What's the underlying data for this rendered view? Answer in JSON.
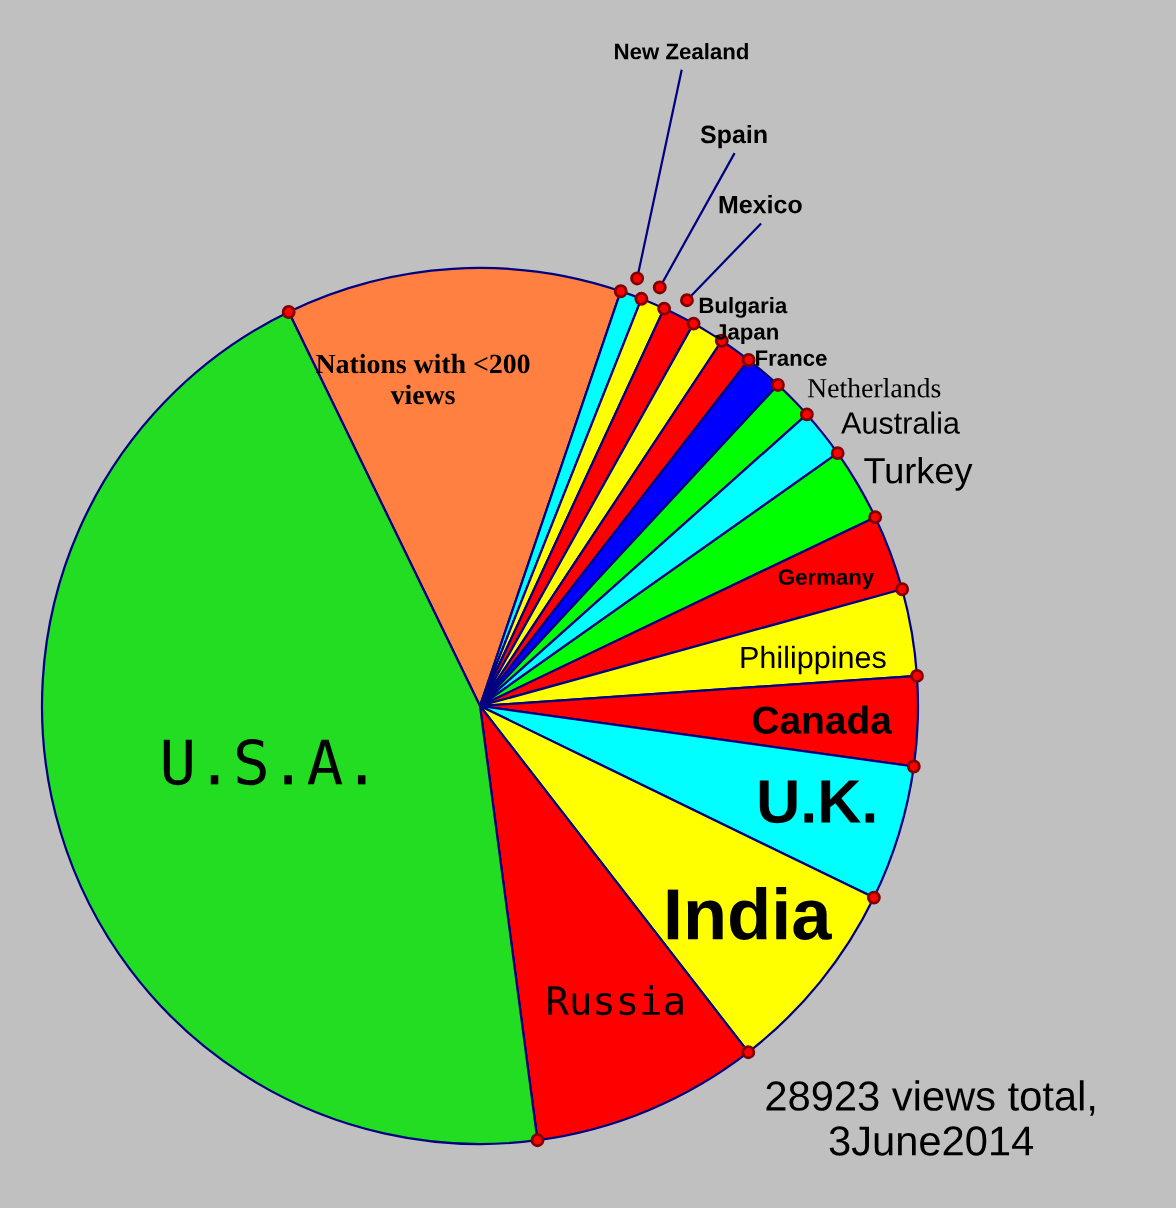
{
  "chart_data": {
    "type": "pie",
    "categories": [
      "Nations with <200 views",
      "New Zealand",
      "Spain",
      "Mexico",
      "Bulgaria",
      "Japan",
      "France",
      "Netherlands",
      "Australia",
      "Turkey",
      "Germany",
      "Philippines",
      "Canada",
      "U.K.",
      "India",
      "Russia",
      "U.S.A."
    ],
    "values": [
      12.4,
      0.8,
      0.9,
      1.2,
      1.2,
      1.2,
      1.4,
      1.5,
      1.8,
      2.7,
      2.8,
      3.2,
      3.3,
      5.0,
      7.3,
      8.4,
      44.9
    ],
    "colors": [
      "#ff8040",
      "#00ffff",
      "#ffff00",
      "#ff0000",
      "#ffff00",
      "#ff0000",
      "#0000ff",
      "#00ff00",
      "#00ffff",
      "#00ff00",
      "#ff0000",
      "#ffff00",
      "#ff0000",
      "#00ffff",
      "#ffff00",
      "#ff0000",
      "#22dd22"
    ],
    "annotations": [
      "28923 views total,\n3June2014"
    ]
  }
}
